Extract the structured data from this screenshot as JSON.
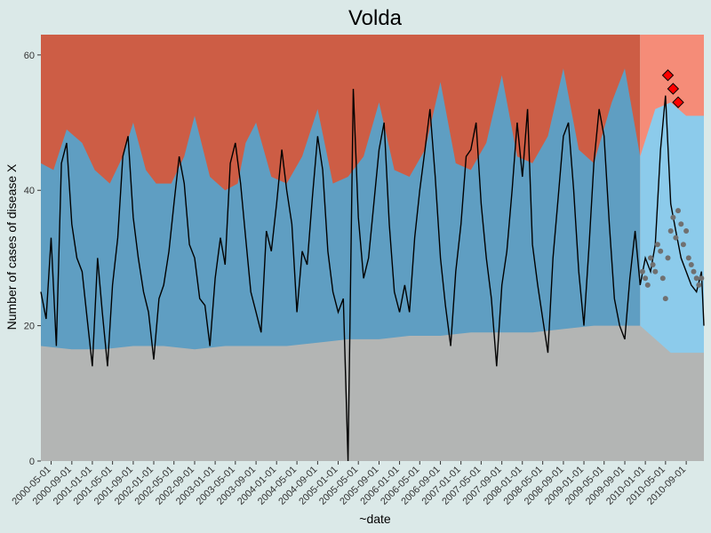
{
  "chart_data": {
    "type": "area",
    "title": "Volda",
    "xlabel": "~date",
    "ylabel": "Number of cases of disease X",
    "ylim": [
      0,
      63
    ],
    "grid": false,
    "x_ticks": [
      "2000-05-01",
      "2000-09-01",
      "2001-01-01",
      "2001-05-01",
      "2001-09-01",
      "2002-01-01",
      "2002-05-01",
      "2002-09-01",
      "2003-01-01",
      "2003-05-01",
      "2003-09-01",
      "2004-01-01",
      "2004-05-01",
      "2004-09-01",
      "2005-01-01",
      "2005-05-01",
      "2005-09-01",
      "2006-01-01",
      "2006-05-01",
      "2006-09-01",
      "2007-01-01",
      "2007-05-01",
      "2007-09-01",
      "2008-01-01",
      "2008-05-01",
      "2008-09-01",
      "2009-01-01",
      "2009-05-01",
      "2009-09-01",
      "2010-01-01",
      "2010-05-01",
      "2010-09-01"
    ],
    "y_ticks": [
      0,
      20,
      40,
      60
    ],
    "x_range": [
      "2000-03-01",
      "2010-12-15"
    ],
    "baseline_period_end": "2009-12-01",
    "colors": {
      "background": "#dbe9e8",
      "low_band": "#b3b5b4",
      "normal_band_baseline": "#5f9ec2",
      "high_band_baseline": "#cd5d45",
      "normal_band_current": "#8ccbeb",
      "high_band_current": "#f58c78",
      "observed_line": "#000000",
      "current_points": "#707070",
      "alert_markers": "#ff0000"
    },
    "series": [
      {
        "label_keys": "lower band (low)",
        "dates": [
          "2000-03-01",
          "2000-09-01",
          "2001-03-01",
          "2001-09-01",
          "2002-03-01",
          "2002-09-01",
          "2003-03-01",
          "2003-09-01",
          "2004-03-01",
          "2004-09-01",
          "2005-03-01",
          "2005-09-01",
          "2006-03-01",
          "2006-09-01",
          "2007-03-01",
          "2007-09-01",
          "2008-03-01",
          "2008-09-01",
          "2009-03-01",
          "2009-09-01",
          "2009-12-01",
          "2010-06-01",
          "2010-12-15"
        ],
        "lower_threshold": [
          17,
          16.5,
          16.5,
          17,
          17,
          16.5,
          17,
          17,
          17,
          17.5,
          18,
          18,
          18.5,
          18.5,
          19,
          19,
          19,
          19.5,
          20,
          20,
          20,
          16,
          16
        ]
      }
    ],
    "upper_threshold": {
      "dates": [
        "2000-03-01",
        "2000-05-15",
        "2000-08-01",
        "2000-11-01",
        "2001-01-15",
        "2001-04-15",
        "2001-07-01",
        "2001-09-01",
        "2001-11-15",
        "2002-01-15",
        "2002-04-15",
        "2002-07-01",
        "2002-09-01",
        "2002-12-01",
        "2003-03-01",
        "2003-05-15",
        "2003-07-01",
        "2003-09-01",
        "2003-12-01",
        "2004-03-01",
        "2004-06-01",
        "2004-09-01",
        "2004-12-01",
        "2005-03-01",
        "2005-06-01",
        "2005-09-01",
        "2005-12-01",
        "2006-03-01",
        "2006-06-01",
        "2006-09-01",
        "2006-12-01",
        "2007-03-01",
        "2007-06-01",
        "2007-09-01",
        "2007-12-01",
        "2008-03-01",
        "2008-06-01",
        "2008-09-01",
        "2008-12-01",
        "2009-03-01",
        "2009-06-15",
        "2009-09-01",
        "2009-12-01",
        "2010-03-01",
        "2010-06-01",
        "2010-09-01",
        "2010-12-15"
      ],
      "values": [
        44,
        43,
        49,
        47,
        43,
        41,
        45,
        50,
        43,
        41,
        41,
        45,
        51,
        42,
        40,
        41,
        47,
        50,
        42,
        41,
        45,
        52,
        41,
        42,
        45,
        53,
        43,
        42,
        46,
        56,
        44,
        43,
        47,
        57,
        45,
        44,
        48,
        58,
        46,
        44,
        53,
        58,
        45,
        52,
        53,
        51,
        51
      ]
    },
    "observed": {
      "dates": [
        "2000-03-01",
        "2000-04-01",
        "2000-05-01",
        "2000-06-01",
        "2000-07-01",
        "2000-08-01",
        "2000-09-01",
        "2000-10-01",
        "2000-11-01",
        "2000-12-01",
        "2001-01-01",
        "2001-02-01",
        "2001-03-01",
        "2001-04-01",
        "2001-05-01",
        "2001-06-01",
        "2001-07-01",
        "2001-08-01",
        "2001-09-01",
        "2001-10-01",
        "2001-11-01",
        "2001-12-01",
        "2002-01-01",
        "2002-02-01",
        "2002-03-01",
        "2002-04-01",
        "2002-05-01",
        "2002-06-01",
        "2002-07-01",
        "2002-08-01",
        "2002-09-01",
        "2002-10-01",
        "2002-11-01",
        "2002-12-01",
        "2003-01-01",
        "2003-02-01",
        "2003-03-01",
        "2003-04-01",
        "2003-05-01",
        "2003-06-01",
        "2003-07-01",
        "2003-08-01",
        "2003-09-01",
        "2003-10-01",
        "2003-11-01",
        "2003-12-01",
        "2004-01-01",
        "2004-02-01",
        "2004-03-01",
        "2004-04-01",
        "2004-05-01",
        "2004-06-01",
        "2004-07-01",
        "2004-08-01",
        "2004-09-01",
        "2004-10-01",
        "2004-11-01",
        "2004-12-01",
        "2005-01-01",
        "2005-02-01",
        "2005-03-01",
        "2005-04-01",
        "2005-05-01",
        "2005-06-01",
        "2005-07-01",
        "2005-08-01",
        "2005-09-01",
        "2005-10-01",
        "2005-11-01",
        "2005-12-01",
        "2006-01-01",
        "2006-02-01",
        "2006-03-01",
        "2006-04-01",
        "2006-05-01",
        "2006-06-01",
        "2006-07-01",
        "2006-08-01",
        "2006-09-01",
        "2006-10-01",
        "2006-11-01",
        "2006-12-01",
        "2007-01-01",
        "2007-02-01",
        "2007-03-01",
        "2007-04-01",
        "2007-05-01",
        "2007-06-01",
        "2007-07-01",
        "2007-08-01",
        "2007-09-01",
        "2007-10-01",
        "2007-11-01",
        "2007-12-01",
        "2008-01-01",
        "2008-02-01",
        "2008-03-01",
        "2008-04-01",
        "2008-05-01",
        "2008-06-01",
        "2008-07-01",
        "2008-08-01",
        "2008-09-01",
        "2008-10-01",
        "2008-11-01",
        "2008-12-01",
        "2009-01-01",
        "2009-02-01",
        "2009-03-01",
        "2009-04-01",
        "2009-05-01",
        "2009-06-01",
        "2009-07-01",
        "2009-08-01",
        "2009-09-01",
        "2009-10-01",
        "2009-11-01",
        "2009-12-01",
        "2010-01-01",
        "2010-02-01",
        "2010-03-01",
        "2010-04-01",
        "2010-05-01",
        "2010-06-01",
        "2010-07-01",
        "2010-08-01",
        "2010-09-01",
        "2010-10-01",
        "2010-11-01",
        "2010-12-01",
        "2010-12-15"
      ],
      "values": [
        25,
        21,
        33,
        17,
        44,
        47,
        35,
        30,
        28,
        21,
        14,
        30,
        22,
        14,
        26,
        33,
        45,
        48,
        36,
        30,
        25,
        22,
        15,
        24,
        26,
        31,
        38,
        45,
        41,
        32,
        30,
        24,
        23,
        17,
        27,
        33,
        29,
        44,
        47,
        41,
        33,
        25,
        22,
        19,
        34,
        31,
        38,
        46,
        40,
        35,
        22,
        31,
        29,
        39,
        48,
        43,
        31,
        25,
        22,
        24,
        0,
        55,
        36,
        27,
        30,
        38,
        46,
        50,
        35,
        25,
        22,
        26,
        22,
        33,
        40,
        46,
        52,
        42,
        30,
        23,
        17,
        28,
        35,
        45,
        46,
        50,
        38,
        30,
        24,
        14,
        26,
        31,
        40,
        50,
        42,
        52,
        32,
        26,
        21,
        16,
        30,
        39,
        48,
        50,
        40,
        28,
        20,
        32,
        44,
        52,
        48,
        35,
        24,
        20,
        18,
        27,
        34,
        26,
        30,
        28,
        32,
        46,
        54,
        38,
        34,
        30,
        28,
        26,
        25,
        28,
        20
      ]
    },
    "current_points": {
      "dates": [
        "2009-12-15",
        "2010-01-01",
        "2010-01-15",
        "2010-02-01",
        "2010-02-15",
        "2010-03-01",
        "2010-03-15",
        "2010-04-01",
        "2010-04-15",
        "2010-05-01",
        "2010-05-15",
        "2010-06-01",
        "2010-06-15",
        "2010-07-01",
        "2010-07-15",
        "2010-08-01",
        "2010-08-15",
        "2010-09-01",
        "2010-09-15",
        "2010-10-01",
        "2010-10-15",
        "2010-11-01",
        "2010-11-15",
        "2010-12-01"
      ],
      "values": [
        28,
        27,
        26,
        30,
        29,
        28,
        32,
        31,
        27,
        24,
        30,
        34,
        36,
        33,
        37,
        35,
        32,
        34,
        30,
        29,
        28,
        27,
        26,
        27
      ]
    },
    "alerts": {
      "dates": [
        "2010-05-15",
        "2010-06-15",
        "2010-07-15"
      ],
      "values": [
        57,
        55,
        53
      ]
    }
  }
}
